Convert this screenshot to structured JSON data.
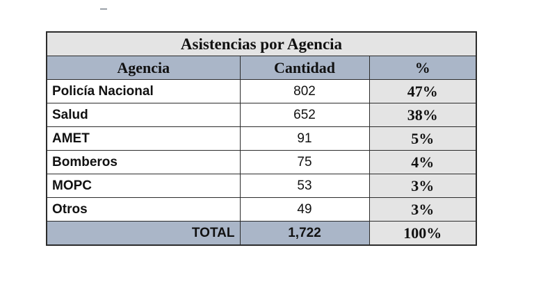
{
  "table": {
    "title": "Asistencias por Agencia",
    "headers": [
      "Agencia",
      "Cantidad",
      "%"
    ],
    "rows": [
      {
        "agency": "Policía Nacional",
        "quantity": "802",
        "percent": "47%"
      },
      {
        "agency": "Salud",
        "quantity": "652",
        "percent": "38%"
      },
      {
        "agency": "AMET",
        "quantity": "91",
        "percent": "5%"
      },
      {
        "agency": "Bomberos",
        "quantity": "75",
        "percent": "4%"
      },
      {
        "agency": "MOPC",
        "quantity": "53",
        "percent": "3%"
      },
      {
        "agency": "Otros",
        "quantity": "49",
        "percent": "3%"
      }
    ],
    "total": {
      "label": "TOTAL",
      "quantity": "1,722",
      "percent": "100%"
    }
  },
  "colors": {
    "header_fill": "#aab6c8",
    "percent_fill": "#e4e4e4",
    "border": "#2b2b2b"
  }
}
